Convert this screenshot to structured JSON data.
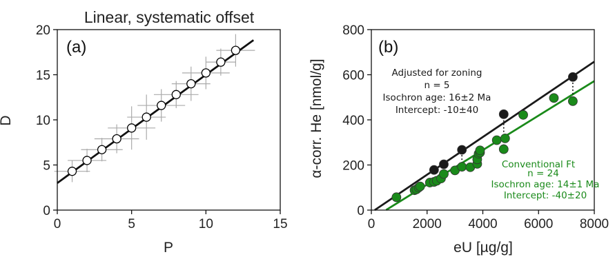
{
  "chart_data": [
    {
      "type": "scatter",
      "panel_label": "(a)",
      "title": "Linear, systematic offset",
      "xlabel": "P",
      "ylabel": "D",
      "xlim": [
        0,
        15
      ],
      "ylim": [
        0,
        20
      ],
      "xticks": [
        "0",
        "5",
        "10",
        "15"
      ],
      "yticks": [
        "0",
        "5",
        "10",
        "15",
        "20"
      ],
      "grid": false,
      "points": [
        {
          "x": 1,
          "y": 4.3,
          "xerr": 1.2,
          "yerr": 1.2
        },
        {
          "x": 2,
          "y": 5.5,
          "xerr": 1.3,
          "yerr": 1.3
        },
        {
          "x": 3,
          "y": 6.7,
          "xerr": 1.4,
          "yerr": 1.3
        },
        {
          "x": 4,
          "y": 7.9,
          "xerr": 1.5,
          "yerr": 1.6
        },
        {
          "x": 5,
          "y": 9.1,
          "xerr": 1.6,
          "yerr": 2.4
        },
        {
          "x": 6,
          "y": 10.3,
          "xerr": 1.3,
          "yerr": 2.5
        },
        {
          "x": 7,
          "y": 11.6,
          "xerr": 1.6,
          "yerr": 1.8
        },
        {
          "x": 8,
          "y": 12.8,
          "xerr": 1.5,
          "yerr": 1.5
        },
        {
          "x": 9,
          "y": 14.0,
          "xerr": 1.3,
          "yerr": 1.9
        },
        {
          "x": 10,
          "y": 15.2,
          "xerr": 1.6,
          "yerr": 1.8
        },
        {
          "x": 11,
          "y": 16.4,
          "xerr": 1.0,
          "yerr": 1.5
        },
        {
          "x": 12,
          "y": 17.7,
          "xerr": 1.3,
          "yerr": 1.8
        }
      ],
      "fit_line": {
        "slope": 1.2,
        "intercept": 3.0,
        "x_range": [
          0,
          13.2
        ]
      },
      "colors": {
        "points": "#ffffff",
        "edge": "#000000",
        "errorbars": "#aaaaaa",
        "line": "#111111"
      }
    },
    {
      "type": "scatter",
      "panel_label": "(b)",
      "xlabel": "eU [µg/g]",
      "ylabel": "α-corr. He [nmol/g]",
      "xlim": [
        0,
        8000
      ],
      "ylim": [
        0,
        800
      ],
      "xticks": [
        "0",
        "2000",
        "4000",
        "6000",
        "8000"
      ],
      "yticks": [
        "0",
        "200",
        "400",
        "600",
        "800"
      ],
      "grid": false,
      "series": [
        {
          "name": "Adjusted for zoning",
          "color": "#1a1a1a",
          "points": [
            {
              "x": 2250,
              "y": 178
            },
            {
              "x": 2600,
              "y": 203
            },
            {
              "x": 3250,
              "y": 267
            },
            {
              "x": 4750,
              "y": 425
            },
            {
              "x": 7230,
              "y": 590
            }
          ],
          "fit_line": {
            "slope": 0.0835,
            "intercept": -10,
            "x_range": [
              120,
              8000
            ]
          },
          "annotation": [
            "Adjusted for zoning",
            "n = 5",
            "Isochron age: 16±2 Ma",
            "Intercept: -10±40"
          ]
        },
        {
          "name": "Conventional Ft",
          "color": "#1a8a1a",
          "points": [
            {
              "x": 900,
              "y": 57
            },
            {
              "x": 1550,
              "y": 88
            },
            {
              "x": 1620,
              "y": 92
            },
            {
              "x": 1700,
              "y": 100
            },
            {
              "x": 1750,
              "y": 105
            },
            {
              "x": 2100,
              "y": 122
            },
            {
              "x": 2250,
              "y": 125
            },
            {
              "x": 2350,
              "y": 130
            },
            {
              "x": 2500,
              "y": 140
            },
            {
              "x": 2600,
              "y": 160
            },
            {
              "x": 3000,
              "y": 176
            },
            {
              "x": 3250,
              "y": 192
            },
            {
              "x": 3550,
              "y": 190
            },
            {
              "x": 3800,
              "y": 205
            },
            {
              "x": 3800,
              "y": 225
            },
            {
              "x": 3850,
              "y": 250
            },
            {
              "x": 3900,
              "y": 255
            },
            {
              "x": 3900,
              "y": 265
            },
            {
              "x": 4500,
              "y": 310
            },
            {
              "x": 4750,
              "y": 270
            },
            {
              "x": 4800,
              "y": 318
            },
            {
              "x": 5450,
              "y": 422
            },
            {
              "x": 6550,
              "y": 497
            },
            {
              "x": 7230,
              "y": 483
            }
          ],
          "fit_line": {
            "slope": 0.0765,
            "intercept": -40,
            "x_range": [
              530,
              8000
            ]
          },
          "annotation": [
            "Conventional Ft",
            "n = 24",
            "Isochron age: 14±1 Ma",
            "Intercept: -40±20"
          ]
        }
      ],
      "connectors": [
        {
          "x": 3250,
          "from": 192,
          "to": 267
        },
        {
          "x": 4750,
          "from": 270,
          "to": 425
        },
        {
          "x": 7230,
          "from": 483,
          "to": 590
        }
      ]
    }
  ]
}
